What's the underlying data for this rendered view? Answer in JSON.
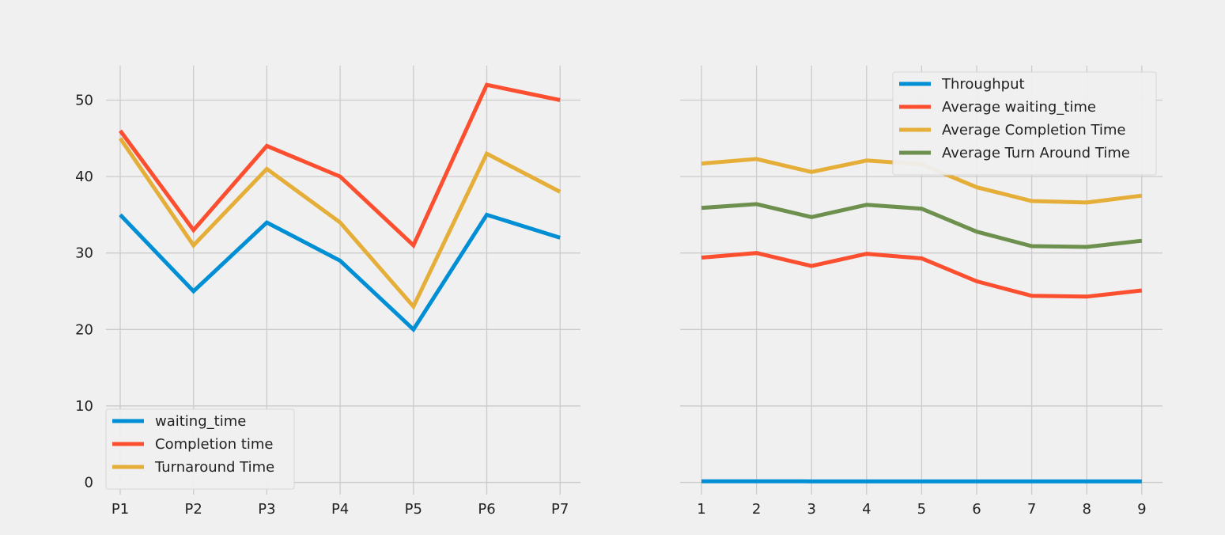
{
  "chart_data": [
    {
      "type": "line",
      "categories": [
        "P1",
        "P2",
        "P3",
        "P4",
        "P5",
        "P6",
        "P7"
      ],
      "series": [
        {
          "name": "waiting_time",
          "color": "#008fd5",
          "values": [
            35,
            25,
            34,
            29,
            20,
            35,
            32
          ]
        },
        {
          "name": "Completion time",
          "color": "#fc4f30",
          "values": [
            46,
            33,
            44,
            40,
            31,
            52,
            50
          ]
        },
        {
          "name": "Turnaround Time",
          "color": "#e5ae38",
          "values": [
            45,
            31,
            41,
            34,
            23,
            43,
            38
          ]
        }
      ],
      "yticks": [
        0,
        10,
        20,
        30,
        40,
        50
      ],
      "ylim": [
        -1.6,
        54.5
      ],
      "grid": true,
      "legend": "lower-left"
    },
    {
      "type": "line",
      "x": [
        1,
        2,
        3,
        4,
        5,
        6,
        7,
        8,
        9
      ],
      "series": [
        {
          "name": "Throughput",
          "color": "#008fd5",
          "values": [
            0.15,
            0.15,
            0.14,
            0.13,
            0.13,
            0.14,
            0.14,
            0.13,
            0.13
          ]
        },
        {
          "name": "Average waiting_time",
          "color": "#fc4f30",
          "values": [
            29.4,
            30.0,
            28.3,
            29.9,
            29.3,
            26.3,
            24.4,
            24.3,
            25.1
          ]
        },
        {
          "name": "Average Completion Time",
          "color": "#e5ae38",
          "values": [
            41.7,
            42.3,
            40.6,
            42.1,
            41.6,
            38.6,
            36.8,
            36.6,
            37.5
          ]
        },
        {
          "name": "Average Turn Around Time",
          "color": "#6d904f",
          "values": [
            35.9,
            36.4,
            34.7,
            36.3,
            35.8,
            32.8,
            30.9,
            30.8,
            31.6
          ]
        }
      ],
      "xticks": [
        1,
        2,
        3,
        4,
        5,
        6,
        7,
        8,
        9
      ],
      "ylim": [
        -1.6,
        54.5
      ],
      "grid": true,
      "legend": "top-right"
    }
  ]
}
